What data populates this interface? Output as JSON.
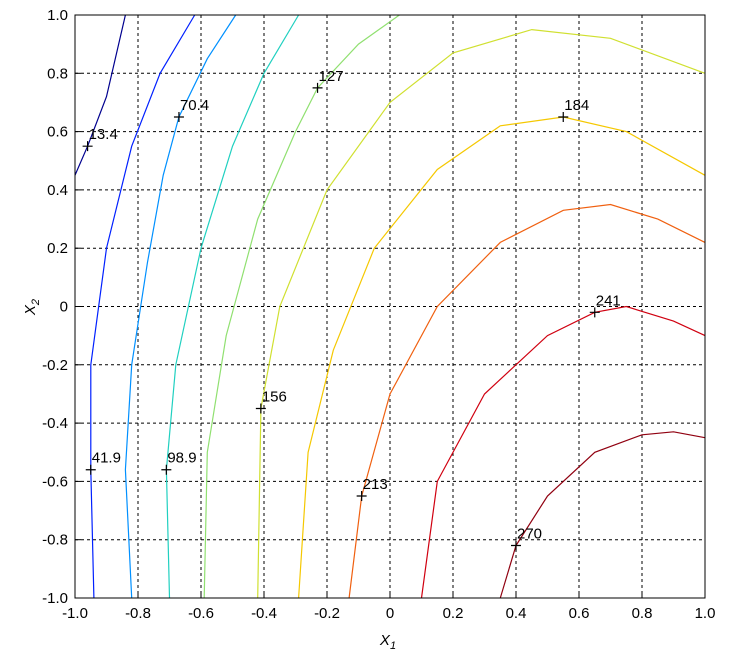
{
  "chart_data": {
    "type": "contour",
    "xlabel": "X",
    "xlabel_sub": "1",
    "ylabel": "X",
    "ylabel_sub": "2",
    "xlim": [
      -1,
      1
    ],
    "ylim": [
      -1,
      1
    ],
    "xticks": [
      {
        "value": -1,
        "label": "-1.0"
      },
      -0.8,
      -0.6,
      -0.4,
      -0.2,
      0,
      0.2,
      0.4,
      0.6,
      0.8,
      {
        "value": 1,
        "label": "1.0"
      }
    ],
    "yticks": [
      {
        "value": -1,
        "label": "-1.0"
      },
      -0.8,
      -0.6,
      -0.4,
      -0.2,
      0,
      0.2,
      0.4,
      0.6,
      0.8,
      {
        "value": 1,
        "label": "1.0"
      }
    ],
    "grid": true,
    "contours": [
      {
        "level": 13.4,
        "color": "#00008f",
        "label_x": -0.96,
        "label_y": 0.55,
        "x": [
          -1,
          -0.96,
          -0.9,
          -0.84
        ],
        "y": [
          0.45,
          0.55,
          0.72,
          1
        ]
      },
      {
        "level": 41.9,
        "color": "#0020ff",
        "label_x": -0.95,
        "label_y": -0.56,
        "x": [
          -0.94,
          -0.95,
          -0.95,
          -0.9,
          -0.82,
          -0.73,
          -0.62
        ],
        "y": [
          -1,
          -0.56,
          -0.2,
          0.2,
          0.55,
          0.8,
          1
        ]
      },
      {
        "level": 70.4,
        "color": "#0090ff",
        "label_x": -0.67,
        "label_y": 0.65,
        "x": [
          -0.82,
          -0.84,
          -0.82,
          -0.77,
          -0.72,
          -0.67,
          -0.58,
          -0.49
        ],
        "y": [
          -1,
          -0.56,
          -0.2,
          0.15,
          0.45,
          0.65,
          0.85,
          1
        ]
      },
      {
        "level": 98.9,
        "color": "#20d0c0",
        "label_x": -0.71,
        "label_y": -0.56,
        "x": [
          -0.7,
          -0.71,
          -0.68,
          -0.6,
          -0.5,
          -0.4,
          -0.29
        ],
        "y": [
          -1,
          -0.56,
          -0.2,
          0.2,
          0.55,
          0.8,
          1
        ]
      },
      {
        "level": 127,
        "color": "#90e070",
        "label_x": -0.23,
        "label_y": 0.75,
        "x": [
          -0.59,
          -0.58,
          -0.52,
          -0.42,
          -0.3,
          -0.23,
          -0.1,
          0.03
        ],
        "y": [
          -1,
          -0.5,
          -0.1,
          0.3,
          0.6,
          0.75,
          0.9,
          1
        ]
      },
      {
        "level": 156,
        "color": "#d0e030",
        "label_x": -0.41,
        "label_y": -0.35,
        "x": [
          -0.42,
          -0.41,
          -0.35,
          -0.2,
          0,
          0.2,
          0.45,
          0.7,
          1
        ],
        "y": [
          -1,
          -0.35,
          0,
          0.4,
          0.7,
          0.87,
          0.95,
          0.92,
          0.8
        ]
      },
      {
        "level": 184,
        "color": "#f5c800",
        "label_x": 0.55,
        "label_y": 0.65,
        "x": [
          -0.29,
          -0.26,
          -0.18,
          -0.05,
          0.15,
          0.35,
          0.55,
          0.75,
          1
        ],
        "y": [
          -1,
          -0.5,
          -0.15,
          0.2,
          0.47,
          0.62,
          0.65,
          0.6,
          0.45
        ]
      },
      {
        "level": 213,
        "color": "#f06010",
        "label_x": -0.09,
        "label_y": -0.65,
        "x": [
          -0.13,
          -0.09,
          0,
          0.15,
          0.35,
          0.55,
          0.7,
          0.85,
          1
        ],
        "y": [
          -1,
          -0.65,
          -0.3,
          0,
          0.22,
          0.33,
          0.35,
          0.3,
          0.22
        ]
      },
      {
        "level": 241,
        "color": "#d00010",
        "label_x": 0.65,
        "label_y": -0.02,
        "x": [
          0.1,
          0.15,
          0.3,
          0.5,
          0.65,
          0.75,
          0.9,
          1
        ],
        "y": [
          -1,
          -0.6,
          -0.3,
          -0.1,
          -0.02,
          0,
          -0.05,
          -0.1
        ]
      },
      {
        "level": 270,
        "color": "#900010",
        "label_x": 0.4,
        "label_y": -0.82,
        "x": [
          0.35,
          0.4,
          0.5,
          0.65,
          0.8,
          0.9,
          1
        ],
        "y": [
          -1,
          -0.82,
          -0.65,
          -0.5,
          -0.44,
          -0.43,
          -0.45
        ]
      }
    ]
  }
}
